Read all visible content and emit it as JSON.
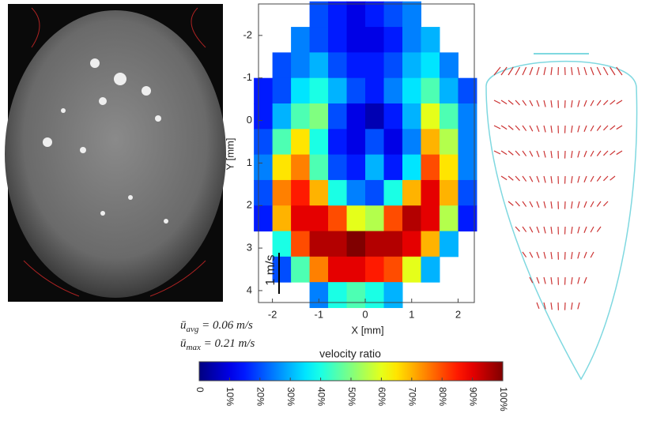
{
  "chart_data": {
    "type": "heatmap",
    "xlabel": "X [mm]",
    "ylabel": "Y [mm]",
    "xlim": [
      -2.3,
      2.35
    ],
    "ylim": [
      -2.74,
      4.28
    ],
    "xticks": [
      -2,
      -1,
      0,
      1,
      2
    ],
    "yticks": [
      -2,
      -1,
      0,
      1,
      2,
      3,
      4
    ],
    "x": [
      -2.2,
      -1.8,
      -1.4,
      -1.0,
      -0.6,
      -0.2,
      0.2,
      0.6,
      1.0,
      1.4,
      1.8,
      2.2
    ],
    "y": [
      -2.5,
      -1.9,
      -1.3,
      -0.7,
      -0.1,
      0.5,
      1.1,
      1.7,
      2.3,
      2.9,
      3.5,
      4.1
    ],
    "z": [
      [
        null,
        null,
        null,
        20,
        15,
        10,
        15,
        20,
        25,
        null,
        null,
        null
      ],
      [
        null,
        null,
        25,
        20,
        15,
        10,
        10,
        15,
        25,
        30,
        null,
        null
      ],
      [
        null,
        20,
        25,
        30,
        20,
        15,
        15,
        20,
        30,
        35,
        25,
        null
      ],
      [
        15,
        20,
        35,
        40,
        30,
        20,
        15,
        25,
        35,
        45,
        30,
        20
      ],
      [
        15,
        30,
        45,
        50,
        20,
        10,
        5,
        15,
        30,
        60,
        45,
        25
      ],
      [
        20,
        45,
        65,
        40,
        15,
        10,
        20,
        10,
        25,
        70,
        55,
        25
      ],
      [
        25,
        65,
        75,
        45,
        20,
        15,
        30,
        15,
        35,
        80,
        65,
        25
      ],
      [
        20,
        75,
        85,
        70,
        40,
        25,
        20,
        40,
        70,
        90,
        70,
        20
      ],
      [
        15,
        70,
        90,
        90,
        80,
        60,
        55,
        80,
        95,
        90,
        55,
        15
      ],
      [
        null,
        40,
        80,
        95,
        95,
        100,
        95,
        95,
        90,
        70,
        30,
        null
      ],
      [
        null,
        20,
        45,
        75,
        90,
        90,
        85,
        80,
        60,
        30,
        null,
        null
      ],
      [
        null,
        null,
        null,
        25,
        40,
        45,
        40,
        30,
        null,
        null,
        null,
        null
      ]
    ],
    "colormap": "jet",
    "colorbar": {
      "title": "velocity ratio",
      "clim": [
        0,
        100
      ],
      "ticks": [
        0,
        {
          "value": 10,
          "label": "10%"
        },
        {
          "value": 20,
          "label": "20%"
        },
        {
          "value": 30,
          "label": "30%"
        },
        {
          "value": 40,
          "label": "40%"
        },
        {
          "value": 50,
          "label": "50%"
        },
        {
          "value": 60,
          "label": "60%"
        },
        {
          "value": 70,
          "label": "70%"
        },
        {
          "value": 80,
          "label": "80%"
        },
        {
          "value": 90,
          "label": "90%"
        },
        {
          "value": 100,
          "label": "100%"
        }
      ]
    },
    "scale_bar": "1 m/s",
    "annotations": [
      {
        "symbol": "ū",
        "sub": "avg",
        "text": " = 0.06 m/s"
      },
      {
        "symbol": "ū",
        "sub": "max",
        "text": " = 0.21 m/s"
      }
    ]
  }
}
